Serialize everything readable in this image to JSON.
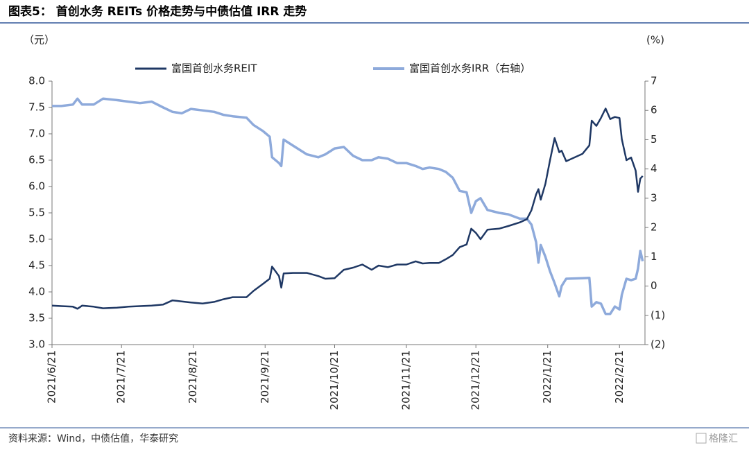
{
  "chart_data": {
    "type": "line",
    "title": "图表5： 首创水务 REITs 价格走势与中债估值 IRR 走势",
    "y_label": "（元）",
    "y2_label": "(%)",
    "source": "资料来源：Wind，中债估值，华泰研究",
    "watermark": "格隆汇",
    "legend": "top",
    "x": [
      "2021/6/21",
      "2021/6/25",
      "2021/6/30",
      "2021/7/2",
      "2021/7/4",
      "2021/7/9",
      "2021/7/13",
      "2021/7/19",
      "2021/7/24",
      "2021/7/29",
      "2021/8/3",
      "2021/8/8",
      "2021/8/12",
      "2021/8/16",
      "2021/8/20",
      "2021/8/25",
      "2021/8/30",
      "2021/9/3",
      "2021/9/7",
      "2021/9/13",
      "2021/9/16",
      "2021/9/20",
      "2021/9/23",
      "2021/9/24",
      "2021/9/27",
      "2021/9/28",
      "2021/9/29",
      "2021/10/3",
      "2021/10/9",
      "2021/10/14",
      "2021/10/17",
      "2021/10/21",
      "2021/10/25",
      "2021/10/29",
      "2021/11/2",
      "2021/11/6",
      "2021/11/9",
      "2021/11/13",
      "2021/11/17",
      "2021/11/21",
      "2021/11/25",
      "2021/11/28",
      "2021/12/1",
      "2021/12/5",
      "2021/12/8",
      "2021/12/11",
      "2021/12/14",
      "2021/12/17",
      "2021/12/19",
      "2021/12/21",
      "2021/12/23",
      "2021/12/26",
      "2021/12/31",
      "2022/1/4",
      "2022/1/9",
      "2022/1/12",
      "2022/1/14",
      "2022/1/16",
      "2022/1/17",
      "2022/1/18",
      "2022/1/20",
      "2022/1/22",
      "2022/1/24",
      "2022/1/26",
      "2022/1/27",
      "2022/1/29",
      "2022/2/5",
      "2022/2/8",
      "2022/2/9",
      "2022/2/11",
      "2022/2/13",
      "2022/2/15",
      "2022/2/17",
      "2022/2/19",
      "2022/2/21",
      "2022/2/22",
      "2022/2/24",
      "2022/2/26",
      "2022/2/28",
      "2022/3/1",
      "2022/3/2",
      "2022/3/3"
    ],
    "series": [
      {
        "name": "富国首创水务REIT",
        "color": "#1f3864",
        "values": [
          3.74,
          3.73,
          3.72,
          3.68,
          3.74,
          3.72,
          3.69,
          3.7,
          3.72,
          3.73,
          3.74,
          3.76,
          3.84,
          3.82,
          3.8,
          3.78,
          3.81,
          3.86,
          3.9,
          3.9,
          4.02,
          4.15,
          4.25,
          4.48,
          4.3,
          4.08,
          4.35,
          4.36,
          4.36,
          4.3,
          4.25,
          4.26,
          4.42,
          4.46,
          4.52,
          4.42,
          4.5,
          4.47,
          4.52,
          4.52,
          4.58,
          4.54,
          4.55,
          4.55,
          4.62,
          4.7,
          4.85,
          4.9,
          5.2,
          5.12,
          5.0,
          5.18,
          5.2,
          5.25,
          5.32,
          5.38,
          5.55,
          5.85,
          5.95,
          5.75,
          6.05,
          6.5,
          6.92,
          6.65,
          6.68,
          6.48,
          6.62,
          6.78,
          7.25,
          7.15,
          7.3,
          7.48,
          7.28,
          7.32,
          7.3,
          6.9,
          6.5,
          6.55,
          6.3,
          5.9,
          6.15,
          6.2
        ]
      },
      {
        "name": "富国首创水务IRR（右轴）",
        "color": "#8eaadb",
        "axis": "y2",
        "values": [
          6.15,
          6.15,
          6.2,
          6.4,
          6.2,
          6.2,
          6.4,
          6.35,
          6.3,
          6.25,
          6.3,
          6.1,
          5.95,
          5.9,
          6.05,
          6.0,
          5.95,
          5.85,
          5.8,
          5.75,
          5.5,
          5.3,
          5.1,
          4.4,
          4.2,
          4.1,
          5.0,
          4.8,
          4.5,
          4.4,
          4.5,
          4.7,
          4.75,
          4.45,
          4.3,
          4.3,
          4.4,
          4.35,
          4.2,
          4.2,
          4.1,
          4.0,
          4.05,
          4.0,
          3.9,
          3.7,
          3.25,
          3.2,
          2.5,
          2.9,
          3.0,
          2.6,
          2.5,
          2.45,
          2.3,
          2.3,
          2.1,
          1.5,
          0.8,
          1.4,
          1.0,
          0.5,
          0.1,
          -0.35,
          0.0,
          0.25,
          0.27,
          0.28,
          -0.7,
          -0.55,
          -0.6,
          -0.95,
          -0.95,
          -0.7,
          -0.8,
          -0.3,
          0.25,
          0.2,
          0.25,
          0.6,
          1.2,
          0.85
        ]
      }
    ],
    "xlim": [
      "2021/6/21",
      "2022/3/4"
    ],
    "xticks": [
      "2021/6/21",
      "2021/7/21",
      "2021/8/21",
      "2021/9/21",
      "2021/10/21",
      "2021/11/21",
      "2021/12/21",
      "2022/1/21",
      "2022/2/21"
    ],
    "ylim": [
      3,
      8
    ],
    "yticks": [
      {
        "value": 3,
        "label": "3.0"
      },
      {
        "value": 3.5,
        "label": "3.5"
      },
      {
        "value": 4,
        "label": "4.0"
      },
      {
        "value": 4.5,
        "label": "4.5"
      },
      {
        "value": 5,
        "label": "5.0"
      },
      {
        "value": 5.5,
        "label": "5.5"
      },
      {
        "value": 6,
        "label": "6.0"
      },
      {
        "value": 6.5,
        "label": "6.5"
      },
      {
        "value": 7,
        "label": "7.0"
      },
      {
        "value": 7.5,
        "label": "7.5"
      },
      {
        "value": 8,
        "label": "8.0"
      }
    ],
    "y2lim": [
      -2,
      7
    ],
    "y2ticks": [
      {
        "value": -2,
        "label": "(2)"
      },
      {
        "value": -1,
        "label": "(1)"
      },
      0,
      1,
      2,
      3,
      4,
      5,
      6,
      7
    ]
  }
}
